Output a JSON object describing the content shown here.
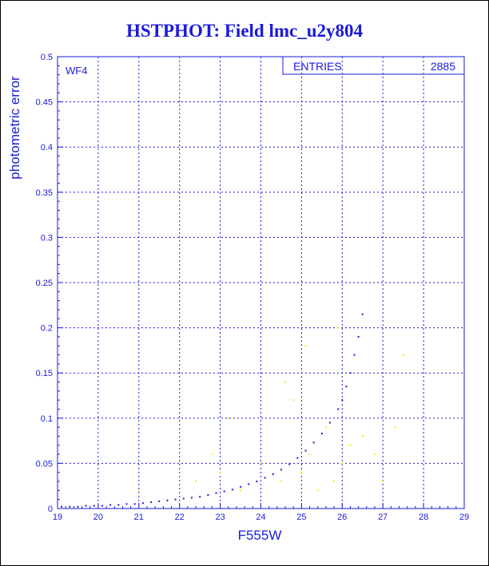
{
  "chart_data": {
    "type": "scatter",
    "title": "HSTPHOT: Field lmc_u2y804",
    "xlabel": "F555W",
    "ylabel": "photometric error",
    "panel_label": "WF4",
    "stats": {
      "label": "ENTRIES",
      "value": "2885"
    },
    "xlim": [
      19,
      29
    ],
    "ylim": [
      0,
      0.5
    ],
    "x_ticks": [
      "19",
      "20",
      "21",
      "22",
      "23",
      "24",
      "25",
      "26",
      "27",
      "28",
      "29"
    ],
    "y_ticks": [
      "0",
      "0.05",
      "0.1",
      "0.15",
      "0.2",
      "0.25",
      "0.3",
      "0.35",
      "0.4",
      "0.45",
      "0.5"
    ],
    "grid": true,
    "colors": {
      "axis": "#1a1adb",
      "main_series": "#1a1adb",
      "secondary_series": "#f0f000"
    },
    "series": [
      {
        "points": [
          [
            19.1,
            0.002
          ],
          [
            19.3,
            0.002
          ],
          [
            19.5,
            0.002
          ],
          [
            19.7,
            0.003
          ],
          [
            19.9,
            0.003
          ],
          [
            20.1,
            0.003
          ],
          [
            20.3,
            0.004
          ],
          [
            20.5,
            0.004
          ],
          [
            20.7,
            0.005
          ],
          [
            20.9,
            0.005
          ],
          [
            21.1,
            0.006
          ],
          [
            21.3,
            0.007
          ],
          [
            21.5,
            0.008
          ],
          [
            21.7,
            0.009
          ],
          [
            21.9,
            0.01
          ],
          [
            22.1,
            0.011
          ],
          [
            22.3,
            0.012
          ],
          [
            22.5,
            0.013
          ],
          [
            22.7,
            0.015
          ],
          [
            22.9,
            0.017
          ],
          [
            23.1,
            0.019
          ],
          [
            23.3,
            0.021
          ],
          [
            23.5,
            0.024
          ],
          [
            23.7,
            0.027
          ],
          [
            23.9,
            0.03
          ],
          [
            24.1,
            0.034
          ],
          [
            24.3,
            0.038
          ],
          [
            24.5,
            0.043
          ],
          [
            24.7,
            0.049
          ],
          [
            24.9,
            0.056
          ],
          [
            25.1,
            0.064
          ],
          [
            25.3,
            0.073
          ],
          [
            25.5,
            0.083
          ],
          [
            25.7,
            0.095
          ],
          [
            25.9,
            0.11
          ],
          [
            26.0,
            0.12
          ],
          [
            26.1,
            0.135
          ],
          [
            26.2,
            0.15
          ],
          [
            26.3,
            0.17
          ],
          [
            26.4,
            0.19
          ],
          [
            26.5,
            0.215
          ]
        ]
      },
      {
        "points": [
          [
            21.0,
            0.02
          ],
          [
            22.4,
            0.03
          ],
          [
            23.0,
            0.04
          ],
          [
            23.5,
            0.02
          ],
          [
            24.0,
            0.05
          ],
          [
            24.5,
            0.03
          ],
          [
            24.8,
            0.12
          ],
          [
            25.0,
            0.04
          ],
          [
            25.2,
            0.06
          ],
          [
            25.4,
            0.02
          ],
          [
            25.6,
            0.09
          ],
          [
            25.8,
            0.03
          ],
          [
            26.0,
            0.05
          ],
          [
            26.2,
            0.07
          ],
          [
            26.5,
            0.08
          ],
          [
            26.8,
            0.06
          ],
          [
            27.0,
            0.03
          ],
          [
            27.3,
            0.09
          ],
          [
            27.5,
            0.17
          ],
          [
            25.1,
            0.18
          ],
          [
            24.6,
            0.14
          ],
          [
            23.2,
            0.1
          ],
          [
            22.8,
            0.06
          ],
          [
            25.9,
            0.2
          ]
        ]
      }
    ]
  }
}
